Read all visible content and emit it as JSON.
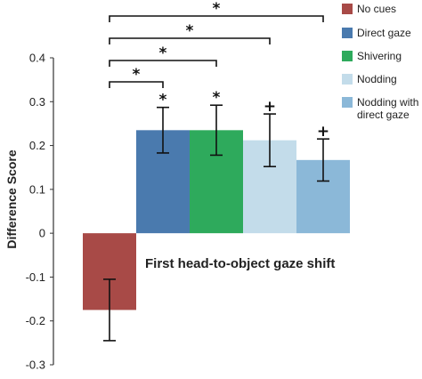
{
  "chart_data": {
    "type": "bar",
    "ylabel": "Difference Score",
    "ylim": [
      -0.3,
      0.4
    ],
    "yticks": [
      0.4,
      0.3,
      0.2,
      0.1,
      0,
      -0.1,
      -0.2,
      -0.3
    ],
    "ytick_labels": [
      "0.4",
      "0.3",
      "0.2",
      "0.1",
      "0",
      "-0.1",
      "-0.2",
      "-0.3"
    ],
    "annotation": "First head-to-object gaze shift",
    "legend_position": "right",
    "series": [
      {
        "name": "No cues",
        "value": -0.175,
        "error": 0.07,
        "color": "#a84a47",
        "mark": ""
      },
      {
        "name": "Direct gaze",
        "value": 0.235,
        "error": 0.052,
        "color": "#4a7aae",
        "mark": "*"
      },
      {
        "name": "Shivering",
        "value": 0.235,
        "error": 0.057,
        "color": "#2eaa5c",
        "mark": "*"
      },
      {
        "name": "Nodding",
        "value": 0.212,
        "error": 0.06,
        "color": "#c3dcea",
        "mark": "+"
      },
      {
        "name": "Nodding with direct gaze",
        "legend_lines": [
          "Nodding with",
          "direct gaze"
        ],
        "value": 0.167,
        "error": 0.048,
        "color": "#8bb8d8",
        "mark": "+"
      }
    ],
    "comparisons": [
      {
        "from": "No cues",
        "to": "Direct gaze",
        "mark": "*"
      },
      {
        "from": "No cues",
        "to": "Shivering",
        "mark": "*"
      },
      {
        "from": "No cues",
        "to": "Nodding",
        "mark": "*"
      },
      {
        "from": "No cues",
        "to": "Nodding with direct gaze",
        "mark": "*"
      }
    ]
  }
}
